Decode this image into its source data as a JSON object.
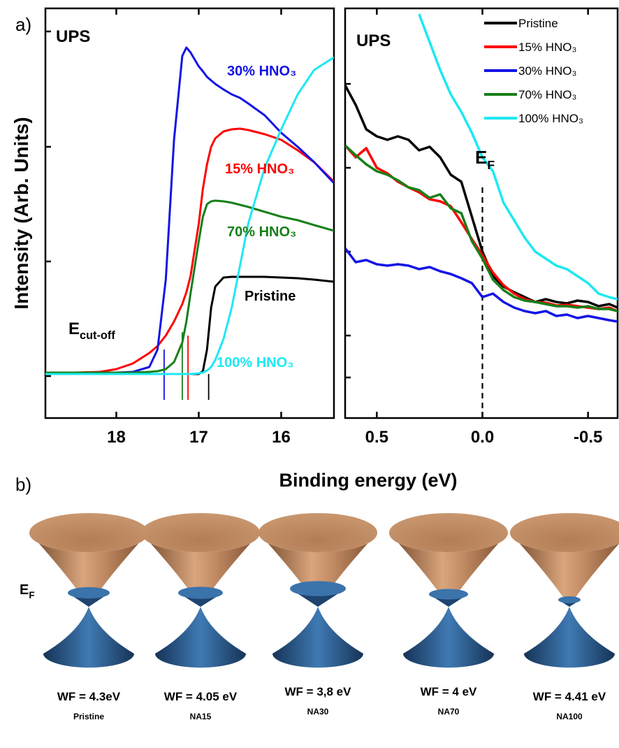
{
  "panel_labels": [
    "a)",
    "b)"
  ],
  "xlabel": "Binding energy (eV)",
  "chart_data": [
    {
      "type": "line",
      "ylabel": "Intensity (Arb. Units)",
      "xlim": [
        18.86,
        15.36
      ],
      "ylim": [
        0,
        586
      ],
      "xticks": [
        18,
        17,
        16
      ],
      "x": [
        18.86,
        18.5,
        18.2,
        18.0,
        17.8,
        17.6,
        17.5,
        17.4,
        17.3,
        17.2,
        17.15,
        17.1,
        17.0,
        16.95,
        16.9,
        16.85,
        16.8,
        16.7,
        16.6,
        16.5,
        16.4,
        16.2,
        16.0,
        15.8,
        15.6,
        15.36
      ],
      "series": [
        {
          "name": "Pristine",
          "color": "#000000",
          "values": [
            63,
            63,
            63,
            63,
            63,
            63,
            63,
            63,
            63,
            63,
            63,
            63,
            63,
            67,
            98,
            158,
            188,
            201,
            202,
            202,
            202,
            202,
            201,
            200,
            198,
            195
          ]
        },
        {
          "name": "15% HNO₃",
          "color": "#ff0000",
          "values": [
            65,
            65,
            66,
            70,
            78,
            93,
            103,
            118,
            138,
            163,
            180,
            203,
            278,
            328,
            363,
            388,
            400,
            410,
            413,
            414,
            412,
            406,
            398,
            383,
            366,
            338
          ]
        },
        {
          "name": "30% HNO₃",
          "color": "#1414e6",
          "values": [
            65,
            65,
            65,
            65,
            66,
            73,
            98,
            198,
            398,
            518,
            530,
            523,
            503,
            496,
            488,
            483,
            478,
            470,
            463,
            458,
            450,
            433,
            408,
            388,
            366,
            336
          ]
        },
        {
          "name": "70% HNO₃",
          "color": "#17801a",
          "values": [
            65,
            65,
            65,
            65,
            65,
            66,
            67,
            70,
            80,
            108,
            138,
            178,
            253,
            288,
            306,
            310,
            311,
            310,
            308,
            305,
            302,
            295,
            288,
            283,
            276,
            268
          ]
        },
        {
          "name": "100% HNO₃",
          "color": "#1ee8f2",
          "values": [
            63,
            63,
            63,
            63,
            63,
            63,
            63,
            63,
            63,
            63,
            63,
            63,
            64,
            65,
            68,
            73,
            83,
            113,
            158,
            218,
            278,
            358,
            413,
            463,
            498,
            516
          ]
        }
      ],
      "cutoff_lines": [
        {
          "x": 17.42,
          "color": "#1414e6",
          "y": [
            26,
            98
          ]
        },
        {
          "x": 17.2,
          "color": "#17801a",
          "y": [
            26,
            123
          ]
        },
        {
          "x": 17.13,
          "color": "#ff0000",
          "y": [
            26,
            118
          ]
        },
        {
          "x": 16.88,
          "color": "#000000",
          "y": [
            26,
            63
          ]
        }
      ],
      "annotations": [
        {
          "text": "UPS",
          "color": "#000000"
        },
        {
          "text": "30% HNO₃",
          "color": "#1414e6"
        },
        {
          "text": "15% HNO₃",
          "color": "#ff0000"
        },
        {
          "text": "70% HNO₃",
          "color": "#17801a"
        },
        {
          "text": "Pristine",
          "color": "#000000"
        },
        {
          "text": "100% HNO₃",
          "color": "#1ee8f2"
        },
        {
          "text": "E",
          "sub": "cut-off",
          "color": "#000000"
        }
      ]
    },
    {
      "type": "line",
      "xlim": [
        0.65,
        -0.64
      ],
      "ylim": [
        0,
        586
      ],
      "xticks": [
        0.5,
        {
          "value": 0,
          "label": "0.0"
        },
        -0.5
      ],
      "legend": "upper right",
      "x": [
        0.65,
        0.6,
        0.55,
        0.5,
        0.45,
        0.4,
        0.35,
        0.3,
        0.25,
        0.2,
        0.15,
        0.1,
        0.05,
        0.0,
        -0.05,
        -0.1,
        -0.15,
        -0.2,
        -0.25,
        -0.3,
        -0.35,
        -0.4,
        -0.45,
        -0.5,
        -0.55,
        -0.6,
        -0.64
      ],
      "series": [
        {
          "name": "Pristine",
          "color": "#000000",
          "values": [
            476,
            448,
            413,
            403,
            398,
            403,
            398,
            383,
            388,
            373,
            348,
            338,
            288,
            238,
            203,
            188,
            180,
            173,
            166,
            170,
            166,
            164,
            168,
            166,
            160,
            163,
            158
          ]
        },
        {
          "name": "15% HNO₃",
          "color": "#ff0000",
          "values": [
            390,
            373,
            386,
            358,
            350,
            338,
            330,
            323,
            313,
            310,
            303,
            280,
            256,
            233,
            208,
            190,
            178,
            170,
            166,
            165,
            161,
            162,
            160,
            158,
            156,
            158,
            153
          ]
        },
        {
          "name": "30% HNO₃",
          "color": "#1414e6",
          "values": [
            243,
            223,
            226,
            220,
            218,
            220,
            218,
            213,
            216,
            210,
            206,
            200,
            193,
            173,
            178,
            166,
            158,
            153,
            150,
            153,
            146,
            148,
            143,
            146,
            143,
            140,
            138
          ]
        },
        {
          "name": "70% HNO₃",
          "color": "#17801a",
          "values": [
            390,
            376,
            363,
            353,
            348,
            340,
            330,
            326,
            315,
            320,
            300,
            293,
            253,
            228,
            198,
            183,
            173,
            168,
            166,
            163,
            160,
            160,
            158,
            160,
            156,
            156,
            153
          ]
        },
        {
          "name": "100% HNO₃",
          "color": "#1ee8f2",
          "values": [
            null,
            null,
            null,
            null,
            null,
            null,
            null,
            578,
            538,
            498,
            463,
            438,
            408,
            373,
            353,
            308,
            283,
            258,
            238,
            228,
            218,
            213,
            203,
            193,
            178,
            173,
            170
          ]
        }
      ],
      "ef_line": {
        "x": 0,
        "y": [
          0,
          336
        ]
      },
      "annotations": [
        {
          "text": "UPS",
          "color": "#000000"
        },
        {
          "text": "E",
          "sub": "F",
          "color": "#000000"
        }
      ]
    }
  ],
  "diagram": {
    "label": {
      "text": "E",
      "sub": "F"
    },
    "cones": [
      {
        "wf": "WF = 4.3eV",
        "name": "Pristine"
      },
      {
        "wf": "WF = 4.05 eV",
        "name": "NA15"
      },
      {
        "wf": "WF = 3,8 eV",
        "name": "NA30"
      },
      {
        "wf": "WF = 4 eV",
        "name": "NA70"
      },
      {
        "wf": "WF = 4.41 eV",
        "name": "NA100"
      }
    ]
  }
}
